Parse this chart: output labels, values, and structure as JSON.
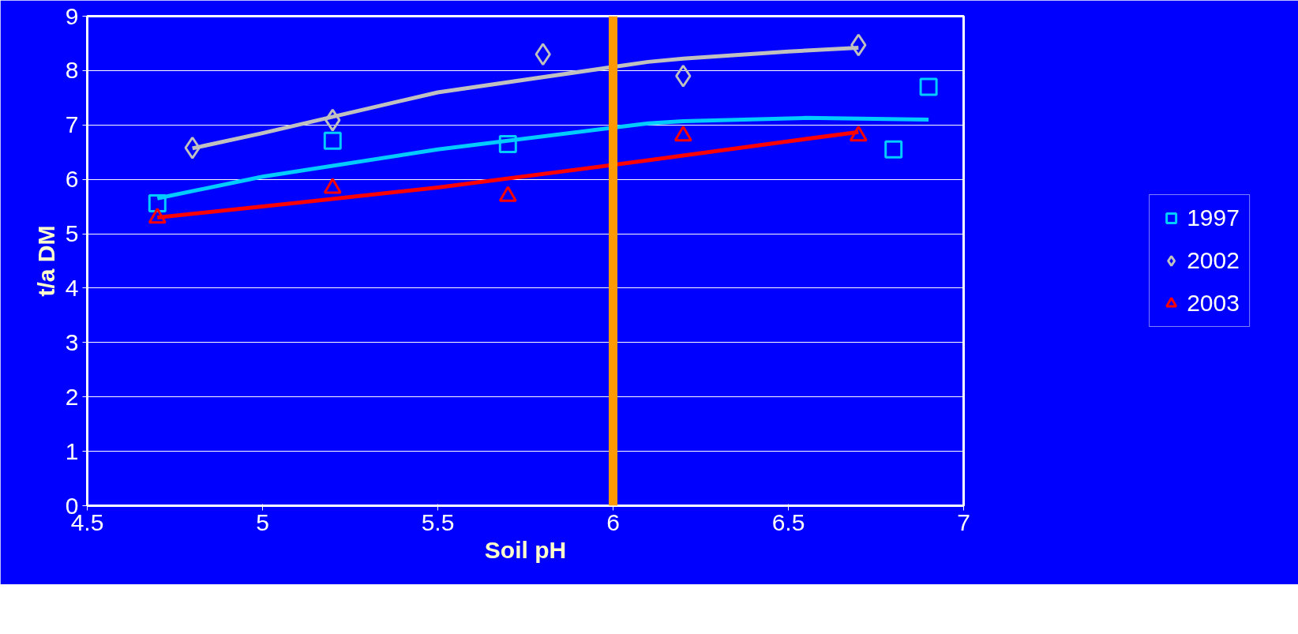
{
  "chart_data": {
    "type": "scatter",
    "xlabel": "Soil pH",
    "ylabel": "t/a DM",
    "xlim": [
      4.5,
      7
    ],
    "xticks": [
      4.5,
      5,
      5.5,
      6,
      6.5,
      7
    ],
    "ylim": [
      0,
      9
    ],
    "yticks": [
      0,
      1,
      2,
      3,
      4,
      5,
      6,
      7,
      8,
      9
    ],
    "grid": "y",
    "legend": "right",
    "series": [
      {
        "name": "1997",
        "color": "#00ccff",
        "marker": "square",
        "x": [
          4.7,
          5.2,
          5.7,
          6.8,
          6.9
        ],
        "values": [
          5.56,
          6.71,
          6.65,
          6.55,
          7.7
        ]
      },
      {
        "name": "2002",
        "color": "#c0c0c0",
        "marker": "diamond",
        "x": [
          4.8,
          5.2,
          5.8,
          6.2,
          6.7
        ],
        "values": [
          6.58,
          7.09,
          8.3,
          7.9,
          8.47
        ]
      },
      {
        "name": "2003",
        "color": "#ff0000",
        "marker": "triangle",
        "x": [
          4.7,
          5.2,
          5.7,
          6.2,
          6.7
        ],
        "values": [
          5.29,
          5.84,
          5.69,
          6.8,
          6.8
        ]
      },
      {
        "type": "line",
        "color": "#00ccff",
        "x": [
          4.7,
          5.0,
          5.5,
          6.1,
          6.2,
          6.55,
          6.9
        ],
        "values": [
          5.65,
          6.05,
          6.55,
          7.03,
          7.07,
          7.13,
          7.1
        ]
      },
      {
        "type": "line",
        "color": "#c0c0c0",
        "x": [
          4.8,
          5.0,
          5.5,
          6.1,
          6.2,
          6.5,
          6.7
        ],
        "values": [
          6.57,
          6.85,
          7.6,
          8.16,
          8.22,
          8.35,
          8.42
        ]
      },
      {
        "type": "line",
        "color": "#ff0000",
        "x": [
          4.7,
          5.0,
          5.5,
          6.1,
          6.5,
          6.7
        ],
        "values": [
          5.3,
          5.5,
          5.85,
          6.35,
          6.7,
          6.87
        ]
      }
    ],
    "ref_lines": [
      {
        "axis": "x",
        "value": 6,
        "label": null,
        "color": "#ff9900"
      }
    ]
  }
}
